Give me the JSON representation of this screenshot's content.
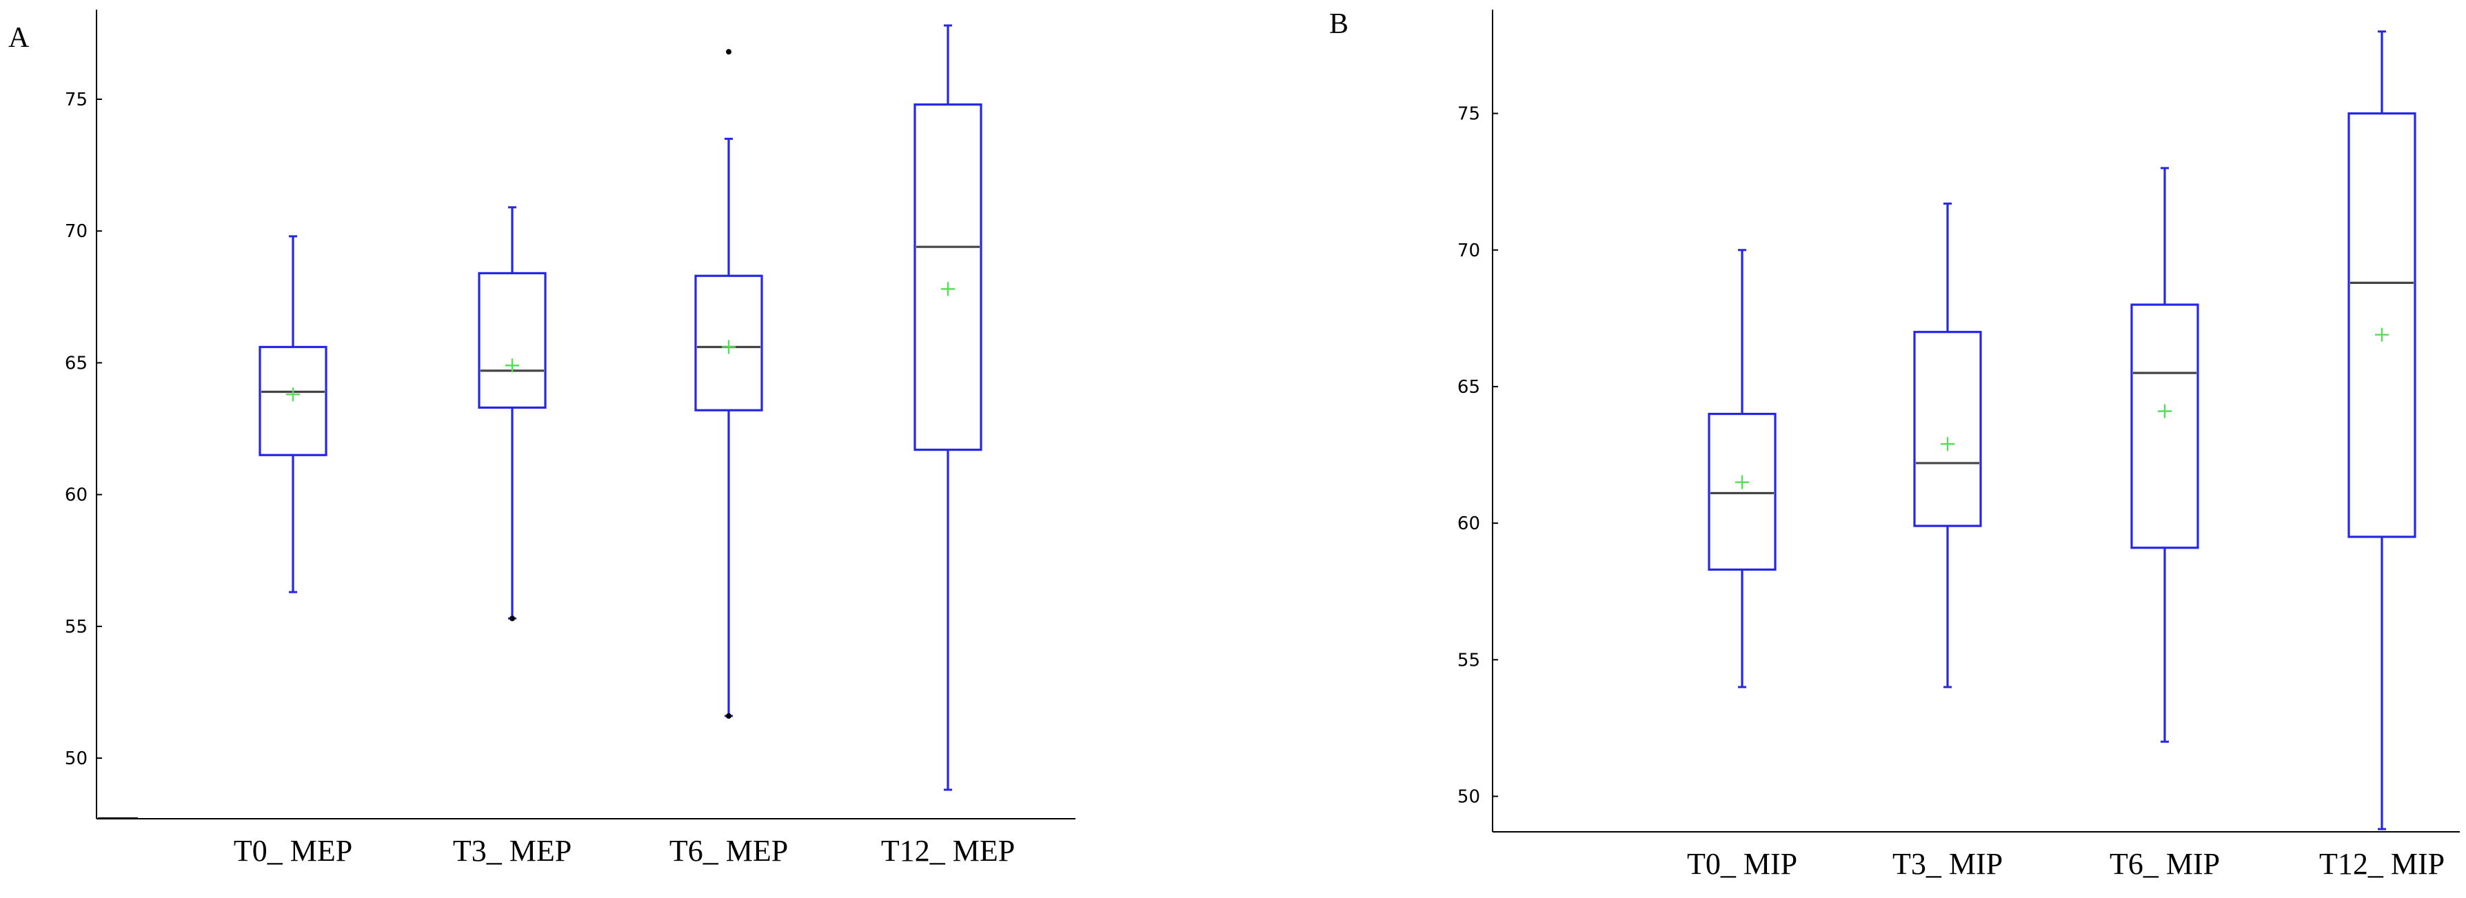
{
  "chart_data": [
    {
      "type": "box",
      "panel_label": "A",
      "categories": [
        "T0_ MEP",
        "T3_ MEP",
        "T6_ MEP",
        "T12_ MEP"
      ],
      "y_ticks": [
        50,
        55,
        60,
        65,
        70,
        75
      ],
      "ylim": [
        47.7,
        78.4
      ],
      "grid": false,
      "boxes": [
        {
          "whisker_low": 56.3,
          "q1": 61.5,
          "median": 63.9,
          "q3": 65.6,
          "whisker_high": 69.8,
          "mean": 63.8,
          "outliers": []
        },
        {
          "whisker_low": 55.3,
          "q1": 63.3,
          "median": 64.7,
          "q3": 68.4,
          "whisker_high": 70.9,
          "mean": 64.9,
          "outliers": [
            55.3
          ]
        },
        {
          "whisker_low": 51.6,
          "q1": 63.2,
          "median": 65.6,
          "q3": 68.3,
          "whisker_high": 73.5,
          "mean": 65.6,
          "outliers": [
            51.6,
            76.8
          ]
        },
        {
          "whisker_low": 48.8,
          "q1": 61.7,
          "median": 69.4,
          "q3": 74.8,
          "whisker_high": 77.8,
          "mean": 67.8,
          "outliers": []
        }
      ],
      "colors": {
        "box": "#2626e6",
        "median": "#444444",
        "mean": "#55dd55",
        "outlier": "#000000"
      }
    },
    {
      "type": "box",
      "panel_label": "B",
      "categories": [
        "T0_ MIP",
        "T3_ MIP",
        "T6_ MIP",
        "T12_ MIP"
      ],
      "y_ticks": [
        50,
        55,
        60,
        65,
        70,
        75
      ],
      "ylim": [
        48.7,
        78.8
      ],
      "grid": false,
      "boxes": [
        {
          "whisker_low": 54.0,
          "q1": 58.3,
          "median": 61.1,
          "q3": 64.0,
          "whisker_high": 70.0,
          "mean": 61.5,
          "outliers": []
        },
        {
          "whisker_low": 54.0,
          "q1": 59.9,
          "median": 62.2,
          "q3": 67.0,
          "whisker_high": 71.7,
          "mean": 62.9,
          "outliers": []
        },
        {
          "whisker_low": 52.0,
          "q1": 59.1,
          "median": 65.5,
          "q3": 68.0,
          "whisker_high": 73.0,
          "mean": 64.1,
          "outliers": []
        },
        {
          "whisker_low": 48.8,
          "q1": 59.5,
          "median": 68.8,
          "q3": 75.0,
          "whisker_high": 78.0,
          "mean": 66.9,
          "outliers": []
        }
      ],
      "colors": {
        "box": "#2626e6",
        "median": "#444444",
        "mean": "#55dd55",
        "outlier": "#000000"
      }
    }
  ]
}
